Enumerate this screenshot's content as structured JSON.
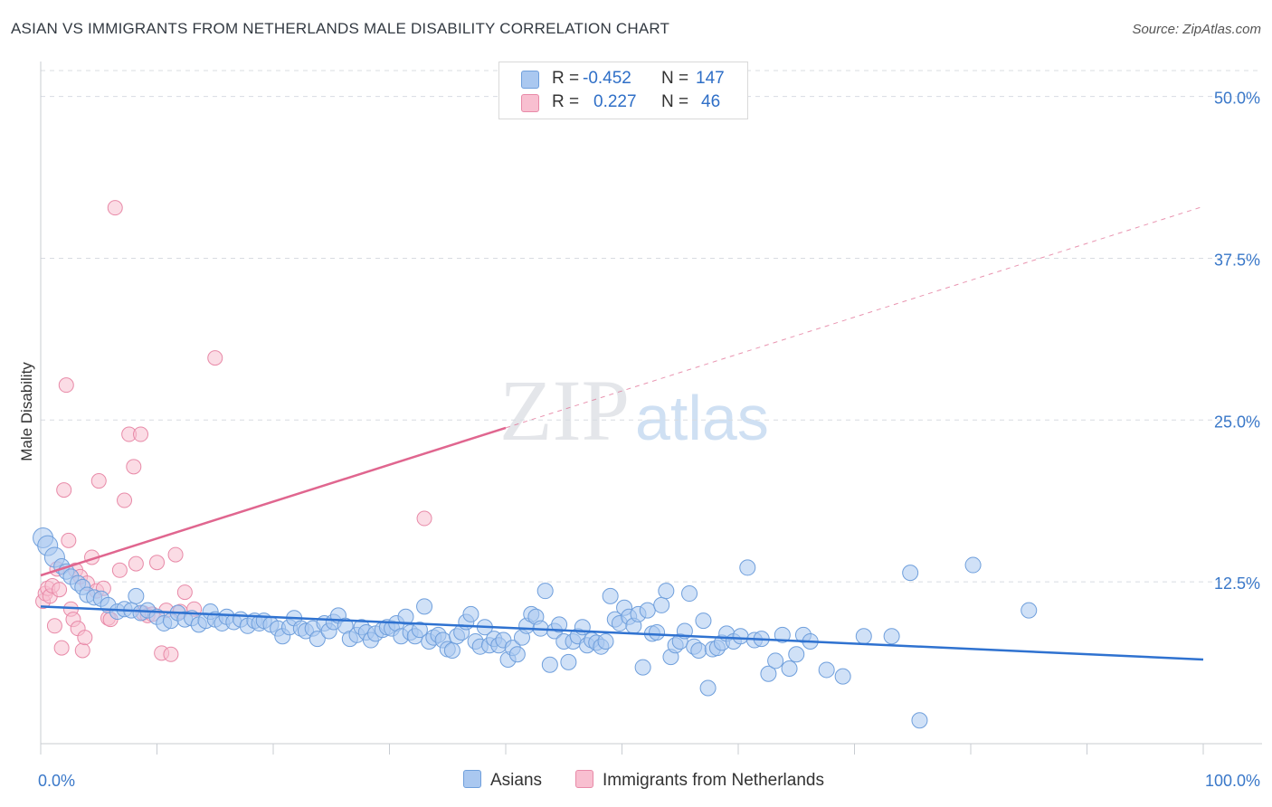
{
  "header": {
    "title": "ASIAN VS IMMIGRANTS FROM NETHERLANDS MALE DISABILITY CORRELATION CHART",
    "source": "Source: ZipAtlas.com"
  },
  "watermark": {
    "zip": "ZIP",
    "atlas": "atlas"
  },
  "legend": {
    "rows": [
      {
        "r_label": "R =",
        "r_value": "-0.452",
        "n_label": "N =",
        "n_value": "147",
        "color": "#aac8f0",
        "border": "#6f9fdc"
      },
      {
        "r_label": "R =",
        "r_value": "0.227",
        "n_label": "N =",
        "n_value": "46",
        "color": "#f8bfd0",
        "border": "#e88aa8"
      }
    ]
  },
  "bottom_legend": [
    {
      "label": "Asians",
      "color": "#aac8f0",
      "border": "#6f9fdc"
    },
    {
      "label": "Immigrants from Netherlands",
      "color": "#f8bfd0",
      "border": "#e88aa8"
    }
  ],
  "colors": {
    "blue_fill": "#aac8f0",
    "blue_stroke": "#6f9fdc",
    "blue_line": "#2f72d0",
    "pink_fill": "#f8bfd0",
    "pink_stroke": "#e88aa8",
    "pink_line": "#e0668f",
    "tick_label": "#3a78c9",
    "grid": "#d8dce2"
  },
  "chart_data": {
    "type": "scatter",
    "title": "ASIAN VS IMMIGRANTS FROM NETHERLANDS MALE DISABILITY CORRELATION CHART",
    "xlabel": "",
    "ylabel": "Male Disability",
    "xlim": [
      0,
      100
    ],
    "ylim": [
      0,
      52
    ],
    "x_tick_labels": [
      "0.0%",
      "100.0%"
    ],
    "y_ticks": [
      12.5,
      25.0,
      37.5,
      50.0
    ],
    "y_tick_labels": [
      "12.5%",
      "25.0%",
      "37.5%",
      "50.0%"
    ],
    "grid": true,
    "legend_position": "top-center",
    "series": [
      {
        "name": "Asians",
        "r": -0.452,
        "n": 147,
        "trend": {
          "x": [
            0,
            100
          ],
          "y": [
            10.6,
            6.5
          ]
        },
        "points": [
          [
            0.2,
            15.9
          ],
          [
            0.6,
            15.3
          ],
          [
            1.2,
            14.4
          ],
          [
            1.8,
            13.7
          ],
          [
            2.2,
            13.3
          ],
          [
            2.6,
            12.9
          ],
          [
            3.2,
            12.4
          ],
          [
            3.6,
            12.1
          ],
          [
            4.0,
            11.5
          ],
          [
            4.6,
            11.3
          ],
          [
            5.2,
            11.2
          ],
          [
            5.8,
            10.7
          ],
          [
            6.6,
            10.2
          ],
          [
            7.2,
            10.4
          ],
          [
            7.8,
            10.3
          ],
          [
            8.2,
            11.4
          ],
          [
            8.6,
            10.1
          ],
          [
            9.2,
            10.3
          ],
          [
            10.0,
            9.8
          ],
          [
            10.6,
            9.3
          ],
          [
            11.2,
            9.5
          ],
          [
            11.8,
            10.1
          ],
          [
            12.4,
            9.6
          ],
          [
            13.0,
            9.7
          ],
          [
            13.6,
            9.2
          ],
          [
            14.2,
            9.5
          ],
          [
            14.6,
            10.2
          ],
          [
            15.0,
            9.6
          ],
          [
            15.6,
            9.3
          ],
          [
            16.0,
            9.8
          ],
          [
            16.6,
            9.4
          ],
          [
            17.2,
            9.6
          ],
          [
            17.8,
            9.1
          ],
          [
            18.4,
            9.5
          ],
          [
            18.8,
            9.3
          ],
          [
            19.2,
            9.5
          ],
          [
            19.8,
            9.2
          ],
          [
            20.4,
            8.9
          ],
          [
            20.8,
            8.3
          ],
          [
            21.4,
            9.0
          ],
          [
            21.8,
            9.7
          ],
          [
            22.4,
            8.9
          ],
          [
            22.8,
            8.7
          ],
          [
            23.4,
            8.9
          ],
          [
            23.8,
            8.1
          ],
          [
            24.4,
            9.3
          ],
          [
            24.8,
            8.7
          ],
          [
            25.2,
            9.4
          ],
          [
            25.6,
            9.9
          ],
          [
            26.2,
            9.1
          ],
          [
            26.6,
            8.1
          ],
          [
            27.2,
            8.4
          ],
          [
            27.6,
            9.0
          ],
          [
            28.0,
            8.6
          ],
          [
            28.4,
            8.0
          ],
          [
            28.8,
            8.5
          ],
          [
            29.4,
            8.8
          ],
          [
            29.8,
            9.0
          ],
          [
            30.2,
            8.9
          ],
          [
            30.6,
            9.3
          ],
          [
            31.0,
            8.3
          ],
          [
            31.4,
            9.8
          ],
          [
            31.8,
            8.6
          ],
          [
            32.2,
            8.3
          ],
          [
            32.6,
            8.8
          ],
          [
            33.0,
            10.6
          ],
          [
            33.4,
            7.9
          ],
          [
            33.8,
            8.2
          ],
          [
            34.2,
            8.4
          ],
          [
            34.6,
            8.0
          ],
          [
            35.0,
            7.3
          ],
          [
            35.4,
            7.2
          ],
          [
            35.8,
            8.3
          ],
          [
            36.2,
            8.6
          ],
          [
            36.6,
            9.4
          ],
          [
            37.0,
            10.0
          ],
          [
            37.4,
            7.9
          ],
          [
            37.8,
            7.5
          ],
          [
            38.2,
            9.0
          ],
          [
            38.6,
            7.6
          ],
          [
            39.0,
            8.1
          ],
          [
            39.4,
            7.6
          ],
          [
            39.8,
            8.0
          ],
          [
            40.2,
            6.5
          ],
          [
            40.6,
            7.4
          ],
          [
            41.0,
            6.9
          ],
          [
            41.4,
            8.2
          ],
          [
            41.8,
            9.1
          ],
          [
            42.2,
            10.0
          ],
          [
            42.6,
            9.8
          ],
          [
            43.0,
            8.9
          ],
          [
            43.4,
            11.8
          ],
          [
            43.8,
            6.1
          ],
          [
            44.2,
            8.7
          ],
          [
            44.6,
            9.2
          ],
          [
            45.0,
            7.9
          ],
          [
            45.4,
            6.3
          ],
          [
            45.8,
            7.9
          ],
          [
            46.2,
            8.3
          ],
          [
            46.6,
            9.0
          ],
          [
            47.0,
            7.6
          ],
          [
            47.4,
            8.0
          ],
          [
            47.8,
            7.8
          ],
          [
            48.2,
            7.5
          ],
          [
            48.6,
            7.9
          ],
          [
            49.0,
            11.4
          ],
          [
            49.4,
            9.6
          ],
          [
            49.8,
            9.3
          ],
          [
            50.2,
            10.5
          ],
          [
            50.6,
            9.8
          ],
          [
            51.0,
            9.1
          ],
          [
            51.4,
            10.0
          ],
          [
            51.8,
            5.9
          ],
          [
            52.2,
            10.3
          ],
          [
            52.6,
            8.5
          ],
          [
            53.0,
            8.6
          ],
          [
            53.4,
            10.7
          ],
          [
            53.8,
            11.8
          ],
          [
            54.2,
            6.7
          ],
          [
            54.6,
            7.6
          ],
          [
            55.0,
            7.9
          ],
          [
            55.4,
            8.7
          ],
          [
            55.8,
            11.6
          ],
          [
            56.2,
            7.5
          ],
          [
            56.6,
            7.2
          ],
          [
            57.0,
            9.5
          ],
          [
            57.4,
            4.3
          ],
          [
            57.8,
            7.3
          ],
          [
            58.2,
            7.4
          ],
          [
            58.6,
            7.8
          ],
          [
            59.0,
            8.5
          ],
          [
            59.6,
            7.9
          ],
          [
            60.2,
            8.3
          ],
          [
            60.8,
            13.6
          ],
          [
            61.4,
            8.0
          ],
          [
            62.0,
            8.1
          ],
          [
            62.6,
            5.4
          ],
          [
            63.2,
            6.4
          ],
          [
            63.8,
            8.4
          ],
          [
            64.4,
            5.8
          ],
          [
            65.0,
            6.9
          ],
          [
            65.6,
            8.4
          ],
          [
            66.2,
            7.9
          ],
          [
            67.6,
            5.7
          ],
          [
            69.0,
            5.2
          ],
          [
            74.8,
            13.2
          ],
          [
            75.6,
            1.8
          ],
          [
            80.2,
            13.8
          ],
          [
            85.0,
            10.3
          ],
          [
            73.2,
            8.3
          ],
          [
            70.8,
            8.3
          ]
        ]
      },
      {
        "name": "Immigrants from Netherlands",
        "r": 0.227,
        "n": 46,
        "trend": {
          "x": [
            0,
            40
          ],
          "y": [
            13.0,
            24.4
          ]
        },
        "trend_extension": {
          "x": [
            40,
            100
          ],
          "y": [
            24.4,
            41.5
          ]
        },
        "points": [
          [
            0.2,
            11.0
          ],
          [
            0.4,
            11.6
          ],
          [
            0.6,
            12.0
          ],
          [
            0.8,
            11.4
          ],
          [
            1.0,
            12.2
          ],
          [
            1.2,
            9.1
          ],
          [
            1.4,
            13.5
          ],
          [
            1.6,
            11.9
          ],
          [
            1.8,
            7.4
          ],
          [
            2.0,
            19.6
          ],
          [
            2.2,
            27.7
          ],
          [
            2.4,
            15.7
          ],
          [
            2.6,
            10.4
          ],
          [
            2.8,
            9.6
          ],
          [
            3.0,
            13.4
          ],
          [
            3.2,
            8.9
          ],
          [
            3.4,
            12.9
          ],
          [
            3.6,
            7.2
          ],
          [
            3.8,
            8.2
          ],
          [
            4.0,
            12.4
          ],
          [
            4.4,
            14.4
          ],
          [
            4.8,
            11.8
          ],
          [
            5.0,
            20.3
          ],
          [
            5.4,
            12.0
          ],
          [
            5.8,
            9.7
          ],
          [
            6.0,
            9.6
          ],
          [
            6.4,
            41.4
          ],
          [
            6.8,
            13.4
          ],
          [
            7.2,
            18.8
          ],
          [
            7.6,
            23.9
          ],
          [
            8.0,
            21.4
          ],
          [
            8.2,
            13.9
          ],
          [
            8.6,
            23.9
          ],
          [
            8.8,
            10.1
          ],
          [
            9.2,
            9.9
          ],
          [
            9.6,
            10.0
          ],
          [
            10.0,
            14.0
          ],
          [
            10.4,
            7.0
          ],
          [
            10.8,
            10.3
          ],
          [
            11.2,
            6.9
          ],
          [
            11.6,
            14.6
          ],
          [
            12.0,
            10.2
          ],
          [
            12.4,
            11.7
          ],
          [
            13.2,
            10.4
          ],
          [
            15.0,
            29.8
          ],
          [
            33.0,
            17.4
          ]
        ]
      }
    ]
  },
  "axes": {
    "ylabel": "Male Disability"
  }
}
